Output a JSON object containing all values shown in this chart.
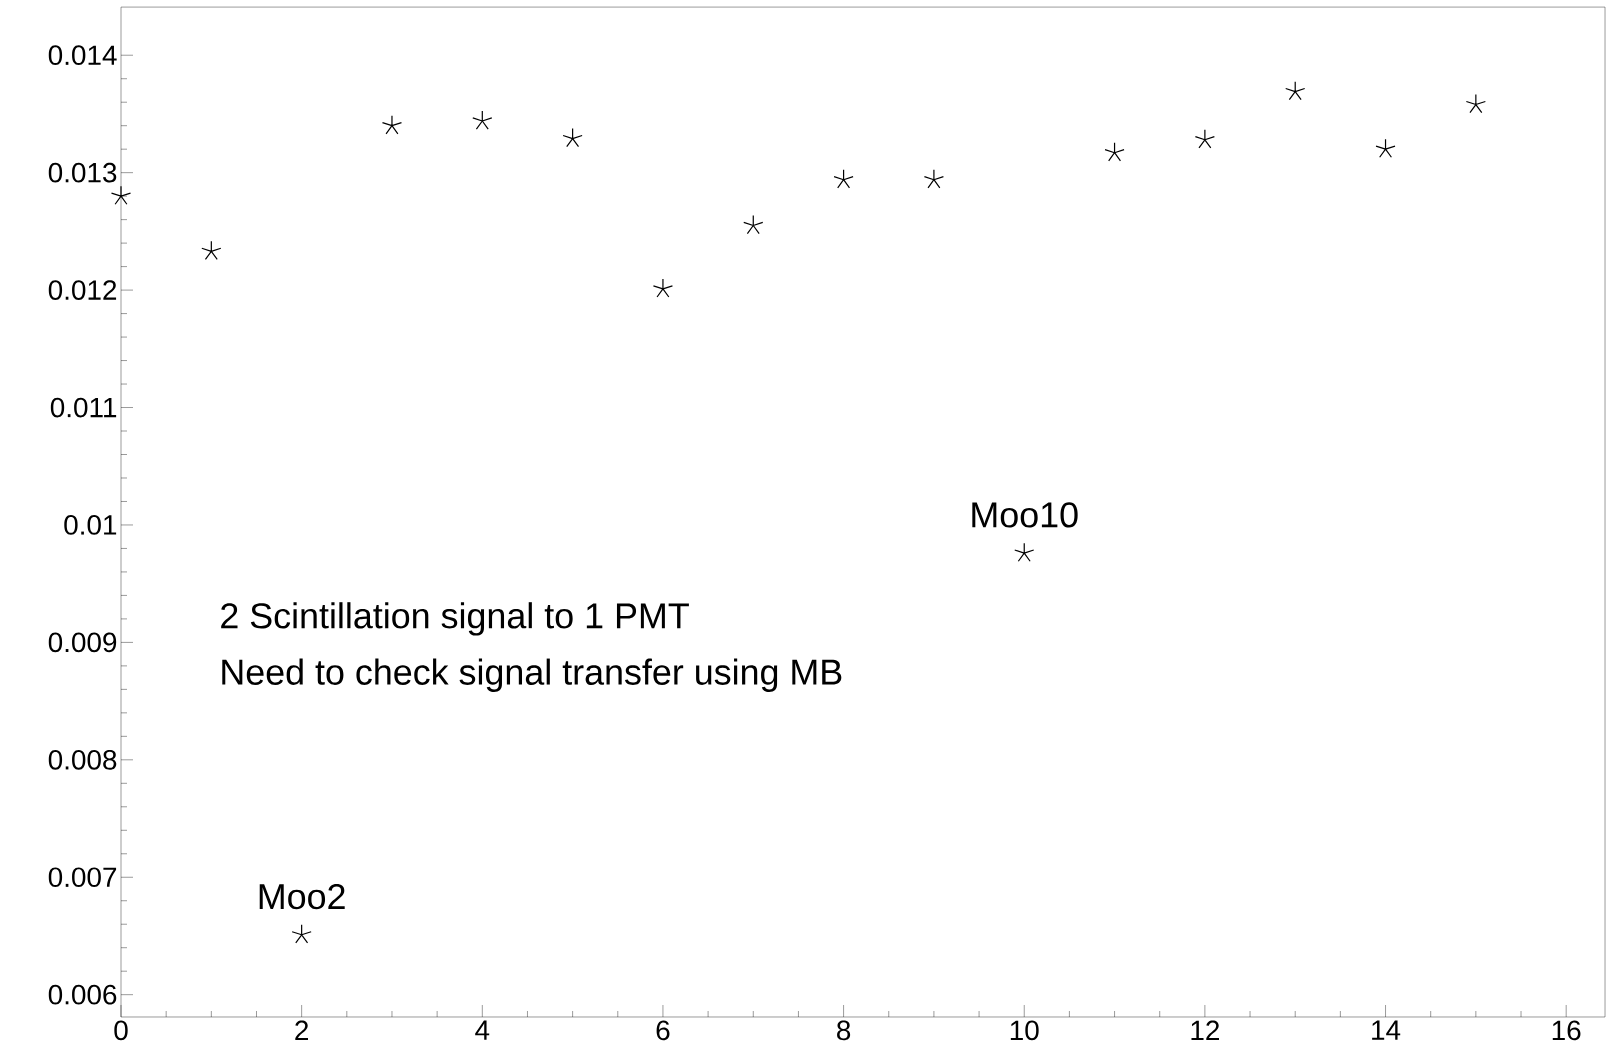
{
  "chart_data": {
    "type": "scatter",
    "x": [
      0,
      1,
      2,
      3,
      4,
      5,
      6,
      7,
      8,
      9,
      10,
      11,
      12,
      13,
      14,
      15
    ],
    "values": [
      0.0128,
      0.01233,
      0.00651,
      0.0134,
      0.01344,
      0.01329,
      0.01201,
      0.01255,
      0.01294,
      0.01294,
      0.00976,
      0.01317,
      0.01328,
      0.01369,
      0.0132,
      0.01358
    ],
    "color": "#000000",
    "marker": "cross",
    "xlim": [
      0,
      16.43
    ],
    "xticks": [
      0,
      2,
      4,
      6,
      8,
      10,
      12,
      14,
      16
    ],
    "ylim": [
      0.00581,
      0.01441
    ],
    "yticks": [
      0.006,
      0.007,
      0.008,
      0.009,
      0.01,
      0.011,
      0.012,
      0.013,
      0.014
    ],
    "annotations": [
      {
        "text": "Moo2",
        "x": 2,
        "y": 0.00651
      },
      {
        "text": "Moo10",
        "x": 10,
        "y": 0.00976
      },
      "2 Scintillation signal to 1 PMT",
      "Need to check signal transfer using MB"
    ]
  }
}
